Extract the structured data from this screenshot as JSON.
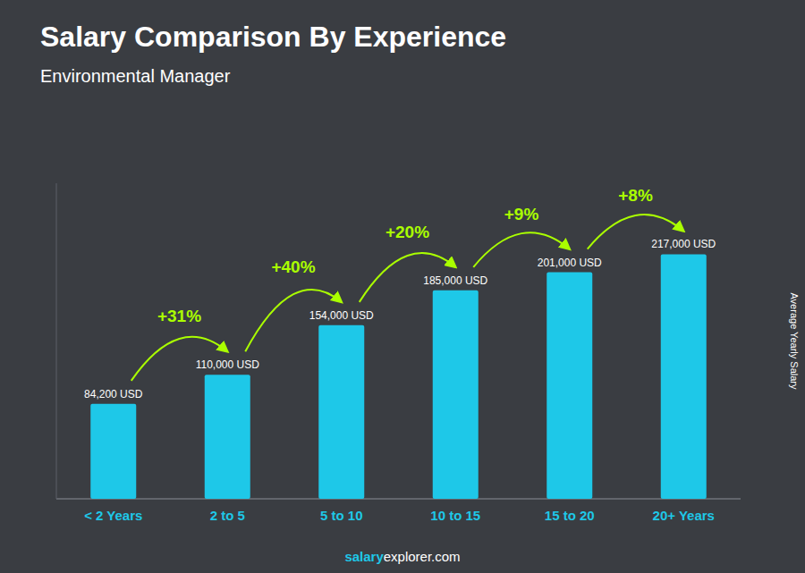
{
  "chart_data": {
    "type": "bar",
    "title": "Salary Comparison By Experience",
    "subtitle": "Environmental Manager",
    "ylabel": "Average Yearly Salary",
    "categories": [
      "< 2 Years",
      "2 to 5",
      "5 to 10",
      "10 to 15",
      "15 to 20",
      "20+ Years"
    ],
    "values": [
      84200,
      110000,
      154000,
      185000,
      201000,
      217000
    ],
    "value_labels": [
      "84,200 USD",
      "110,000 USD",
      "154,000 USD",
      "185,000 USD",
      "201,000 USD",
      "217,000 USD"
    ],
    "data_labels": true,
    "annotations": [
      "+31%",
      "+40%",
      "+20%",
      "+9%",
      "+8%"
    ],
    "watermark": [
      "salary",
      "explorer.com"
    ],
    "color": "#1ec8e8",
    "ylim": [
      0,
      280000
    ],
    "tick_labels": false,
    "grid": false
  }
}
